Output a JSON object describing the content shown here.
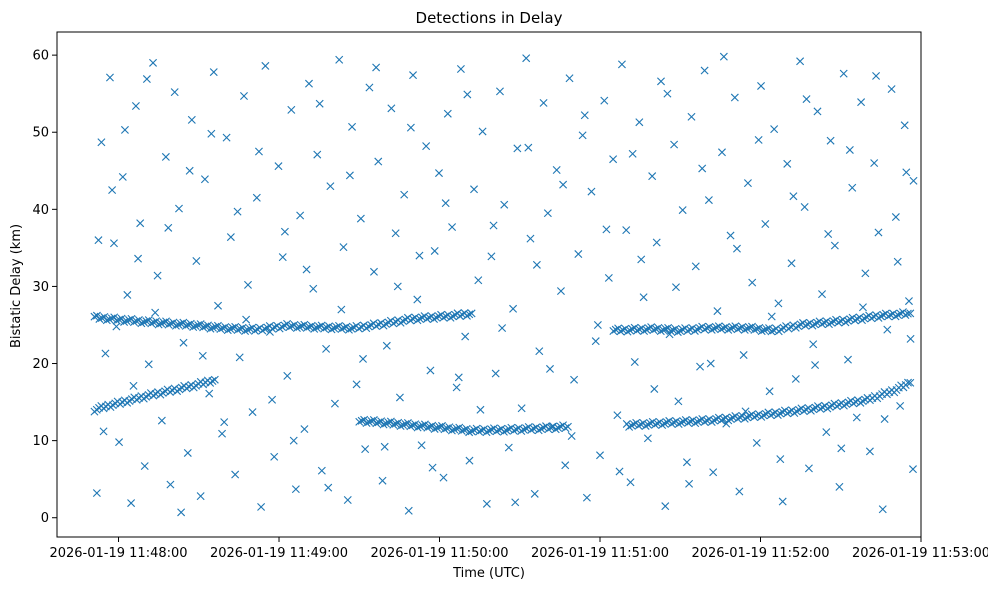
{
  "chart_data": {
    "type": "scatter",
    "title": "Detections in Delay",
    "xlabel": "Time (UTC)",
    "ylabel": "Bistatic Delay (km)",
    "marker": "x",
    "color": "#1f77b4",
    "x_unit": "seconds since 2026-01-19 11:48:00 UTC",
    "xlim": [
      -23,
      300
    ],
    "ylim": [
      -2.5,
      63
    ],
    "x_ticks": [
      {
        "value": 0,
        "label": "2026-01-19 11:48:00"
      },
      {
        "value": 60,
        "label": "2026-01-19 11:49:00"
      },
      {
        "value": 120,
        "label": "2026-01-19 11:50:00"
      },
      {
        "value": 180,
        "label": "2026-01-19 11:51:00"
      },
      {
        "value": 240,
        "label": "2026-01-19 11:52:00"
      },
      {
        "value": 300,
        "label": "2026-01-19 11:53:00"
      }
    ],
    "y_ticks": [
      {
        "value": 0,
        "label": "0"
      },
      {
        "value": 10,
        "label": "10"
      },
      {
        "value": 20,
        "label": "20"
      },
      {
        "value": 30,
        "label": "30"
      },
      {
        "value": 40,
        "label": "40"
      },
      {
        "value": 50,
        "label": "50"
      },
      {
        "value": 60,
        "label": "60"
      }
    ],
    "tracks": [
      {
        "name": "track-1",
        "points": [
          [
            -9,
            14.0
          ],
          [
            -3,
            14.6
          ],
          [
            5,
            15.3
          ],
          [
            13,
            16.0
          ],
          [
            21,
            16.6
          ],
          [
            29,
            17.2
          ],
          [
            36,
            17.9
          ]
        ]
      },
      {
        "name": "track-2",
        "points": [
          [
            -9,
            26.0
          ],
          [
            3,
            25.6
          ],
          [
            15,
            25.3
          ],
          [
            27,
            25.0
          ],
          [
            39,
            24.6
          ],
          [
            51,
            24.4
          ],
          [
            63,
            24.9
          ],
          [
            75,
            24.7
          ],
          [
            88,
            24.6
          ],
          [
            100,
            25.2
          ],
          [
            110,
            25.8
          ],
          [
            125,
            26.2
          ],
          [
            132,
            26.5
          ]
        ]
      },
      {
        "name": "track-3",
        "points": [
          [
            90,
            12.6
          ],
          [
            100,
            12.3
          ],
          [
            110,
            12.0
          ],
          [
            120,
            11.7
          ],
          [
            132,
            11.3
          ],
          [
            145,
            11.4
          ],
          [
            158,
            11.6
          ],
          [
            168,
            11.8
          ]
        ]
      },
      {
        "name": "track-4",
        "points": [
          [
            190,
            12.0
          ],
          [
            205,
            12.3
          ],
          [
            220,
            12.6
          ],
          [
            235,
            13.1
          ],
          [
            250,
            13.7
          ],
          [
            265,
            14.4
          ],
          [
            280,
            15.3
          ],
          [
            290,
            16.5
          ],
          [
            296,
            17.5
          ]
        ]
      },
      {
        "name": "track-5",
        "points": [
          [
            185,
            24.3
          ],
          [
            200,
            24.5
          ],
          [
            210,
            24.3
          ],
          [
            220,
            24.6
          ],
          [
            235,
            24.6
          ],
          [
            245,
            24.3
          ],
          [
            255,
            25.0
          ],
          [
            270,
            25.5
          ],
          [
            285,
            26.2
          ],
          [
            296,
            26.5
          ]
        ]
      }
    ],
    "clutter_points": [
      [
        -8.1,
        3.2
      ],
      [
        -6.4,
        48.7
      ],
      [
        -4.9,
        21.3
      ],
      [
        -3.2,
        57.1
      ],
      [
        -1.7,
        35.6
      ],
      [
        0.2,
        9.8
      ],
      [
        1.6,
        44.2
      ],
      [
        3.3,
        28.9
      ],
      [
        4.7,
        1.9
      ],
      [
        6.5,
        53.4
      ],
      [
        8.1,
        38.2
      ],
      [
        9.8,
        6.7
      ],
      [
        11.3,
        19.9
      ],
      [
        12.9,
        59.0
      ],
      [
        14.6,
        31.4
      ],
      [
        16.2,
        12.6
      ],
      [
        17.7,
        46.8
      ],
      [
        19.4,
        4.3
      ],
      [
        21.0,
        55.2
      ],
      [
        22.6,
        40.1
      ],
      [
        24.3,
        22.7
      ],
      [
        25.9,
        8.4
      ],
      [
        27.4,
        51.6
      ],
      [
        29.1,
        33.3
      ],
      [
        30.7,
        2.8
      ],
      [
        32.3,
        43.9
      ],
      [
        33.9,
        16.1
      ],
      [
        35.6,
        57.8
      ],
      [
        37.2,
        27.5
      ],
      [
        38.7,
        10.9
      ],
      [
        40.4,
        49.3
      ],
      [
        42.0,
        36.4
      ],
      [
        43.6,
        5.6
      ],
      [
        45.3,
        20.8
      ],
      [
        46.9,
        54.7
      ],
      [
        48.4,
        30.2
      ],
      [
        50.1,
        13.7
      ],
      [
        51.7,
        41.5
      ],
      [
        53.3,
        1.4
      ],
      [
        54.9,
        58.6
      ],
      [
        56.6,
        24.1
      ],
      [
        58.2,
        7.9
      ],
      [
        59.8,
        45.6
      ],
      [
        61.4,
        33.8
      ],
      [
        63.1,
        18.4
      ],
      [
        64.6,
        52.9
      ],
      [
        66.3,
        3.7
      ],
      [
        67.9,
        39.2
      ],
      [
        69.5,
        11.5
      ],
      [
        71.2,
        56.3
      ],
      [
        72.8,
        29.7
      ],
      [
        74.3,
        47.1
      ],
      [
        76.0,
        6.1
      ],
      [
        77.6,
        21.9
      ],
      [
        79.2,
        43.0
      ],
      [
        80.9,
        14.8
      ],
      [
        82.5,
        59.4
      ],
      [
        84.1,
        35.1
      ],
      [
        85.7,
        2.3
      ],
      [
        87.3,
        50.7
      ],
      [
        89.0,
        17.3
      ],
      [
        90.6,
        38.8
      ],
      [
        92.2,
        8.9
      ],
      [
        93.8,
        55.8
      ],
      [
        95.5,
        31.9
      ],
      [
        97.1,
        46.2
      ],
      [
        98.7,
        4.8
      ],
      [
        100.3,
        22.3
      ],
      [
        102.0,
        53.1
      ],
      [
        103.6,
        36.9
      ],
      [
        105.2,
        15.6
      ],
      [
        106.8,
        41.9
      ],
      [
        108.5,
        0.9
      ],
      [
        110.1,
        57.4
      ],
      [
        111.7,
        28.3
      ],
      [
        113.3,
        9.4
      ],
      [
        115.0,
        48.2
      ],
      [
        116.6,
        19.1
      ],
      [
        118.2,
        34.6
      ],
      [
        119.8,
        44.7
      ],
      [
        121.5,
        5.2
      ],
      [
        123.1,
        52.4
      ],
      [
        124.7,
        37.7
      ],
      [
        126.4,
        16.9
      ],
      [
        128.0,
        58.2
      ],
      [
        129.6,
        23.5
      ],
      [
        131.2,
        7.4
      ],
      [
        132.9,
        42.6
      ],
      [
        134.5,
        30.8
      ],
      [
        136.1,
        50.1
      ],
      [
        137.7,
        1.8
      ],
      [
        139.4,
        33.9
      ],
      [
        141.0,
        18.7
      ],
      [
        142.6,
        55.3
      ],
      [
        144.2,
        40.6
      ],
      [
        145.9,
        9.1
      ],
      [
        147.5,
        27.1
      ],
      [
        149.1,
        47.9
      ],
      [
        150.7,
        14.2
      ],
      [
        152.4,
        59.6
      ],
      [
        154.0,
        36.2
      ],
      [
        155.6,
        3.1
      ],
      [
        157.3,
        21.6
      ],
      [
        158.9,
        53.8
      ],
      [
        160.5,
        39.5
      ],
      [
        162.1,
        11.8
      ],
      [
        163.8,
        45.1
      ],
      [
        165.4,
        29.4
      ],
      [
        167.0,
        6.8
      ],
      [
        168.6,
        57.0
      ],
      [
        170.3,
        17.9
      ],
      [
        171.9,
        34.2
      ],
      [
        173.5,
        49.6
      ],
      [
        175.1,
        2.6
      ],
      [
        176.8,
        42.3
      ],
      [
        178.4,
        22.9
      ],
      [
        180.0,
        8.1
      ],
      [
        181.6,
        54.1
      ],
      [
        183.3,
        31.1
      ],
      [
        184.9,
        46.5
      ],
      [
        186.5,
        13.3
      ],
      [
        188.2,
        58.8
      ],
      [
        189.8,
        37.3
      ],
      [
        191.4,
        4.6
      ],
      [
        193.0,
        20.2
      ],
      [
        194.7,
        51.3
      ],
      [
        196.3,
        28.6
      ],
      [
        197.9,
        10.3
      ],
      [
        199.5,
        44.3
      ],
      [
        201.2,
        35.7
      ],
      [
        202.8,
        56.6
      ],
      [
        204.4,
        1.5
      ],
      [
        206.0,
        23.8
      ],
      [
        207.7,
        48.4
      ],
      [
        209.3,
        15.1
      ],
      [
        210.9,
        39.9
      ],
      [
        212.5,
        7.2
      ],
      [
        214.2,
        52.0
      ],
      [
        215.8,
        32.6
      ],
      [
        217.4,
        19.6
      ],
      [
        219.1,
        58.0
      ],
      [
        220.7,
        41.2
      ],
      [
        222.3,
        5.9
      ],
      [
        223.9,
        26.8
      ],
      [
        225.6,
        47.4
      ],
      [
        227.2,
        12.2
      ],
      [
        228.8,
        36.6
      ],
      [
        230.4,
        54.5
      ],
      [
        232.1,
        3.4
      ],
      [
        233.7,
        21.1
      ],
      [
        235.3,
        43.4
      ],
      [
        236.9,
        30.5
      ],
      [
        238.6,
        9.7
      ],
      [
        240.2,
        56.0
      ],
      [
        241.8,
        38.1
      ],
      [
        243.4,
        16.4
      ],
      [
        245.1,
        50.4
      ],
      [
        246.7,
        27.8
      ],
      [
        248.3,
        2.1
      ],
      [
        250.0,
        45.9
      ],
      [
        251.6,
        33.0
      ],
      [
        253.2,
        18.0
      ],
      [
        254.8,
        59.2
      ],
      [
        256.5,
        40.3
      ],
      [
        258.1,
        6.4
      ],
      [
        259.7,
        22.5
      ],
      [
        261.3,
        52.7
      ],
      [
        263.0,
        29.0
      ],
      [
        264.6,
        11.1
      ],
      [
        266.2,
        48.9
      ],
      [
        267.8,
        35.3
      ],
      [
        269.5,
        4.0
      ],
      [
        271.1,
        57.6
      ],
      [
        272.7,
        20.5
      ],
      [
        274.3,
        42.8
      ],
      [
        276.0,
        13.0
      ],
      [
        277.6,
        53.9
      ],
      [
        279.2,
        31.7
      ],
      [
        280.9,
        8.6
      ],
      [
        282.5,
        46.0
      ],
      [
        284.1,
        37.0
      ],
      [
        285.7,
        1.1
      ],
      [
        287.4,
        24.4
      ],
      [
        289.0,
        55.6
      ],
      [
        290.6,
        39.0
      ],
      [
        292.2,
        14.5
      ],
      [
        293.9,
        50.9
      ],
      [
        295.5,
        28.1
      ],
      [
        297.0,
        6.3
      ],
      [
        297.2,
        43.7
      ],
      [
        -7.5,
        36.0
      ],
      [
        -5.6,
        11.2
      ],
      [
        -2.4,
        42.5
      ],
      [
        -0.8,
        24.8
      ],
      [
        2.4,
        50.3
      ],
      [
        5.6,
        17.1
      ],
      [
        7.3,
        33.6
      ],
      [
        10.6,
        56.9
      ],
      [
        13.7,
        26.6
      ],
      [
        18.6,
        37.6
      ],
      [
        23.4,
        0.7
      ],
      [
        26.6,
        45.0
      ],
      [
        31.5,
        21.0
      ],
      [
        34.7,
        49.8
      ],
      [
        39.5,
        12.4
      ],
      [
        44.5,
        39.7
      ],
      [
        47.7,
        25.7
      ],
      [
        52.5,
        47.5
      ],
      [
        57.4,
        15.3
      ],
      [
        62.2,
        37.1
      ],
      [
        65.5,
        10.0
      ],
      [
        70.3,
        32.2
      ],
      [
        75.2,
        53.7
      ],
      [
        78.4,
        3.9
      ],
      [
        83.3,
        27.0
      ],
      [
        86.5,
        44.4
      ],
      [
        91.4,
        20.6
      ],
      [
        96.3,
        58.4
      ],
      [
        99.5,
        9.2
      ],
      [
        104.4,
        30.0
      ],
      [
        109.3,
        50.6
      ],
      [
        112.5,
        34.0
      ],
      [
        117.4,
        6.5
      ],
      [
        122.3,
        40.8
      ],
      [
        127.2,
        18.2
      ],
      [
        130.4,
        54.9
      ],
      [
        135.3,
        14.0
      ],
      [
        140.2,
        37.9
      ],
      [
        143.4,
        24.6
      ],
      [
        148.3,
        2.0
      ],
      [
        153.2,
        48.0
      ],
      [
        156.4,
        32.8
      ],
      [
        161.3,
        19.3
      ],
      [
        166.2,
        43.2
      ],
      [
        169.4,
        10.6
      ],
      [
        174.3,
        52.2
      ],
      [
        179.2,
        25.0
      ],
      [
        182.4,
        37.4
      ],
      [
        187.3,
        6.0
      ],
      [
        192.2,
        47.2
      ],
      [
        195.4,
        33.5
      ],
      [
        200.3,
        16.7
      ],
      [
        205.2,
        55.0
      ],
      [
        208.4,
        29.9
      ],
      [
        213.3,
        4.4
      ],
      [
        218.2,
        45.3
      ],
      [
        221.4,
        20.0
      ],
      [
        226.3,
        59.8
      ],
      [
        231.2,
        34.9
      ],
      [
        234.4,
        13.8
      ],
      [
        239.3,
        49.0
      ],
      [
        244.2,
        26.1
      ],
      [
        247.4,
        7.6
      ],
      [
        252.3,
        41.7
      ],
      [
        257.2,
        54.3
      ],
      [
        260.4,
        19.8
      ],
      [
        265.3,
        36.8
      ],
      [
        270.2,
        9.0
      ],
      [
        273.4,
        47.7
      ],
      [
        278.3,
        27.3
      ],
      [
        283.2,
        57.3
      ],
      [
        286.4,
        12.8
      ],
      [
        291.3,
        33.2
      ],
      [
        294.5,
        44.8
      ],
      [
        296.1,
        23.2
      ]
    ]
  }
}
